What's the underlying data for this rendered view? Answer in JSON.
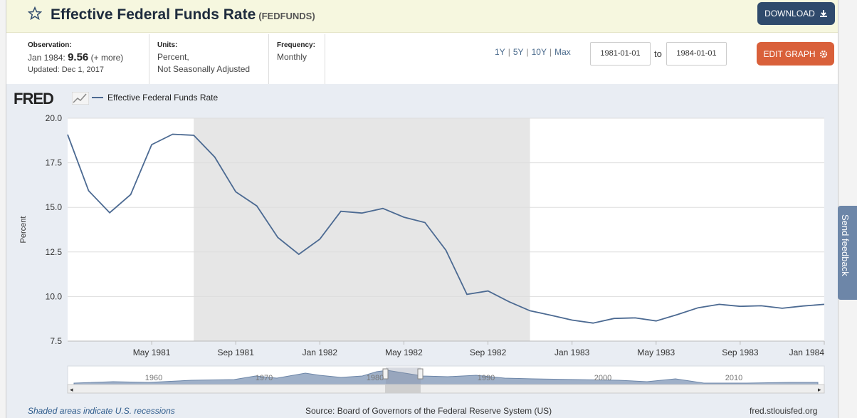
{
  "header": {
    "title": "Effective Federal Funds Rate",
    "series_id": "(FEDFUNDS)",
    "download_label": "DOWNLOAD"
  },
  "meta": {
    "observation_label": "Observation:",
    "observation_date": "Jan 1984:",
    "observation_value": "9.56",
    "more_label": "(+ more)",
    "updated": "Updated: Dec 1, 2017",
    "units_label": "Units:",
    "units_line1": "Percent,",
    "units_line2": "Not Seasonally Adjusted",
    "frequency_label": "Frequency:",
    "frequency_value": "Monthly"
  },
  "controls": {
    "ranges": [
      "1Y",
      "5Y",
      "10Y",
      "Max"
    ],
    "start_date": "1981-01-01",
    "to_label": "to",
    "end_date": "1984-01-01",
    "edit_label": "EDIT GRAPH"
  },
  "chart_header": {
    "logo": "FRED",
    "legend": "Effective Federal Funds Rate"
  },
  "chart_data": {
    "type": "line",
    "title": "Effective Federal Funds Rate",
    "ylabel": "Percent",
    "ylim": [
      7.5,
      20.0
    ],
    "yticks": [
      "20.0",
      "17.5",
      "15.0",
      "12.5",
      "10.0",
      "7.5"
    ],
    "xticks": [
      "May 1981",
      "Sep 1981",
      "Jan 1982",
      "May 1982",
      "Sep 1982",
      "Jan 1983",
      "May 1983",
      "Sep 1983",
      "Jan 1984"
    ],
    "x": [
      "1981-01",
      "1981-02",
      "1981-03",
      "1981-04",
      "1981-05",
      "1981-06",
      "1981-07",
      "1981-08",
      "1981-09",
      "1981-10",
      "1981-11",
      "1981-12",
      "1982-01",
      "1982-02",
      "1982-03",
      "1982-04",
      "1982-05",
      "1982-06",
      "1982-07",
      "1982-08",
      "1982-09",
      "1982-10",
      "1982-11",
      "1982-12",
      "1983-01",
      "1983-02",
      "1983-03",
      "1983-04",
      "1983-05",
      "1983-06",
      "1983-07",
      "1983-08",
      "1983-09",
      "1983-10",
      "1983-11",
      "1983-12",
      "1984-01"
    ],
    "series": [
      {
        "name": "Effective Federal Funds Rate",
        "color": "#4c6a92",
        "values": [
          19.08,
          15.93,
          14.7,
          15.72,
          18.52,
          19.1,
          19.04,
          17.82,
          15.87,
          15.08,
          13.31,
          12.37,
          13.22,
          14.78,
          14.68,
          14.94,
          14.45,
          14.15,
          12.59,
          10.12,
          10.31,
          9.71,
          9.2,
          8.95,
          8.68,
          8.51,
          8.77,
          8.8,
          8.63,
          8.98,
          9.37,
          9.56,
          9.45,
          9.48,
          9.34,
          9.47,
          9.56
        ]
      }
    ],
    "recession": {
      "start": "1981-07",
      "end": "1982-11"
    },
    "navigator_labels": [
      "1960",
      "1970",
      "1980",
      "1990",
      "2000",
      "2010"
    ],
    "grid": true
  },
  "footer": {
    "recession_note": "Shaded areas indicate U.S. recessions",
    "source": "Source: Board of Governors of the Federal Reserve System (US)",
    "url": "fred.stlouisfed.org"
  },
  "feedback_label": "Send feedback",
  "colors": {
    "download": "#2f4a6c",
    "edit": "#d9603a",
    "series": "#4c6a92",
    "recession": "#e6e6e6"
  }
}
